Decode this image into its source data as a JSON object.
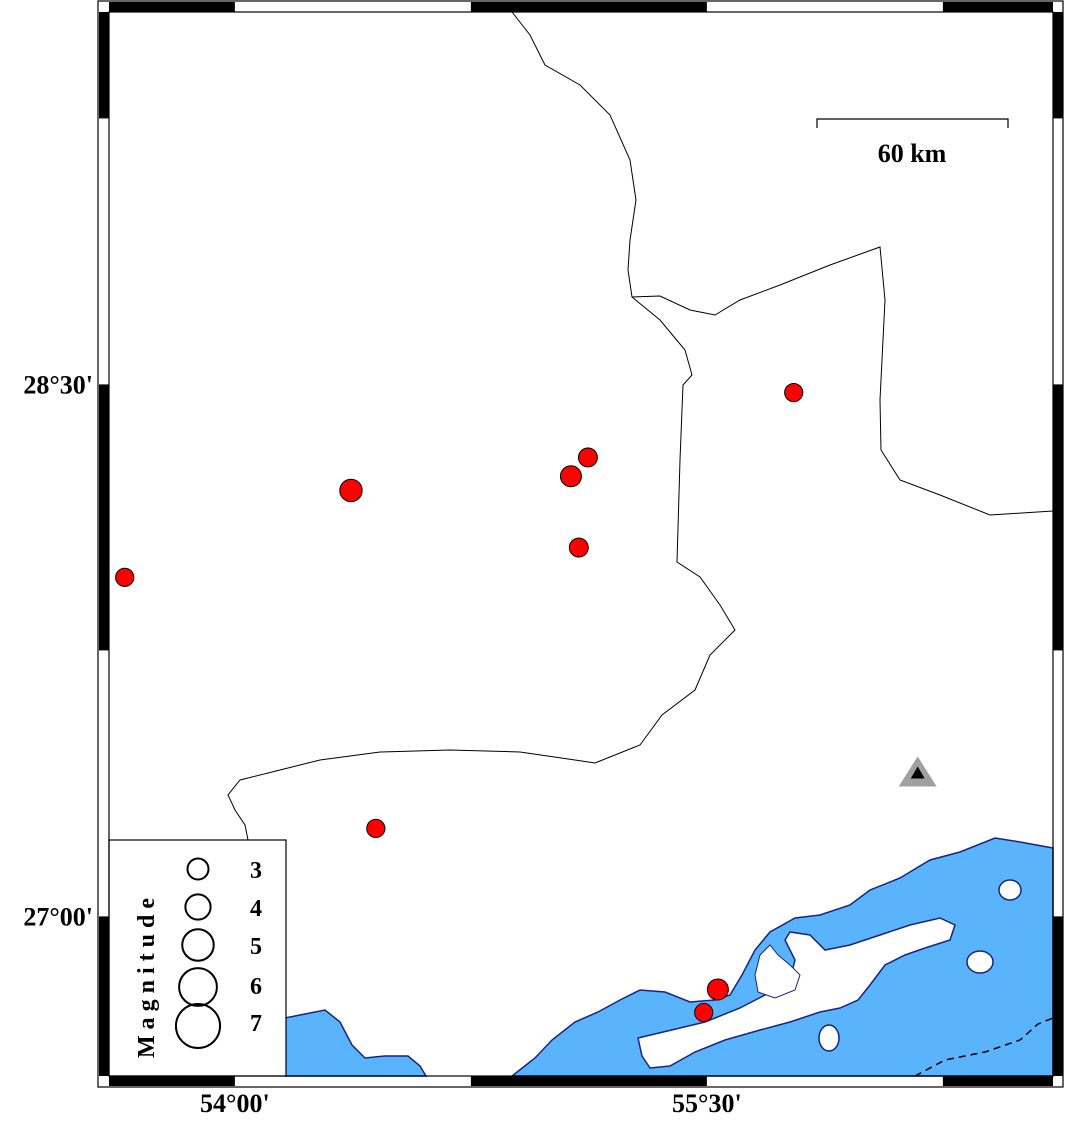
{
  "map": {
    "region": {
      "lon_min": 53.6,
      "lon_max": 56.6,
      "lat_min": 26.55,
      "lat_max": 29.55
    },
    "colors": {
      "water": "#5ab4fc",
      "coastline": "#1a237e",
      "earthquake": "#ff0000",
      "station": "#000000",
      "station_halo": "#a0a0a0",
      "frame": "#000000"
    },
    "x_tick_labels": [
      {
        "lon": 54.0,
        "label": "54°00'"
      },
      {
        "lon": 55.5,
        "label": "55°30'"
      }
    ],
    "y_tick_labels": [
      {
        "lat": 28.5,
        "label": "28°30'"
      },
      {
        "lat": 27.0,
        "label": "27°00'"
      }
    ],
    "scale_bar": {
      "label": "60 km"
    },
    "earthquakes": [
      {
        "lon": 54.369,
        "lat": 28.201,
        "magnitude": 3.2
      },
      {
        "lon": 55.068,
        "lat": 28.241,
        "magnitude": 3.0
      },
      {
        "lon": 55.122,
        "lat": 28.294,
        "magnitude": 2.7
      },
      {
        "lon": 55.093,
        "lat": 28.04,
        "magnitude": 2.7
      },
      {
        "lon": 53.65,
        "lat": 27.956,
        "magnitude": 2.6
      },
      {
        "lon": 55.776,
        "lat": 28.477,
        "magnitude": 2.6
      },
      {
        "lon": 54.448,
        "lat": 27.248,
        "magnitude": 2.6
      },
      {
        "lon": 55.535,
        "lat": 26.794,
        "magnitude": 3.0
      },
      {
        "lon": 55.49,
        "lat": 26.729,
        "magnitude": 2.6
      }
    ],
    "stations": [
      {
        "lon": 56.17,
        "lat": 27.403,
        "symbol": "triangle-icon"
      }
    ],
    "legend": {
      "title": "Magnitude",
      "entries": [
        {
          "magnitude": 3,
          "label": "3"
        },
        {
          "magnitude": 4,
          "label": "4"
        },
        {
          "magnitude": 5,
          "label": "5"
        },
        {
          "magnitude": 6,
          "label": "6"
        },
        {
          "magnitude": 7,
          "label": "7"
        }
      ]
    }
  }
}
